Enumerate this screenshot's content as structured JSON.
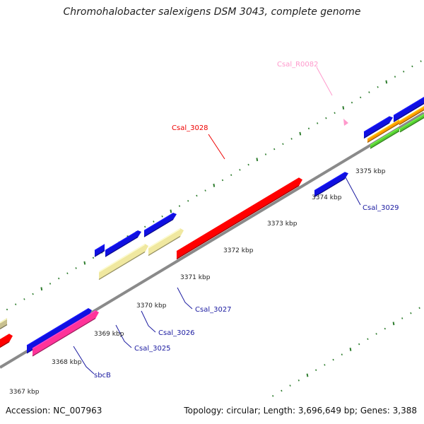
{
  "map": {
    "title": "Chromohalobacter salexigens DSM 3043, complete genome",
    "accession_text": "Accession: NC_007963",
    "summary_text": "Topology: circular; Length: 3,696,649 bp; Genes: 3,388"
  },
  "kbp_ticks": [
    "3367 kbp",
    "3368 kbp",
    "3369 kbp",
    "3370 kbp",
    "3371 kbp",
    "3372 kbp",
    "3373 kbp",
    "3374 kbp",
    "3375 kbp"
  ],
  "gene_labels": [
    "Csal_R0082",
    "Csal_3028",
    "Csal_3029",
    "Csal_3027",
    "Csal_3026",
    "Csal_3025",
    "sbcB"
  ],
  "colors": {
    "backbone": "#8a8a8a",
    "tick_marks": "#2e7d2e",
    "feature_red": "#ff0000",
    "feature_blue": "#1010e0",
    "feature_pink": "#ff3399",
    "feature_yellow": "#f0e8a0",
    "feature_orange": "#ff9900",
    "feature_green": "#55cc33",
    "feature_olive": "#c8c090",
    "label_red": "#ee0000",
    "label_blue": "#1a1aa0",
    "label_pink": "#ff99cc"
  }
}
